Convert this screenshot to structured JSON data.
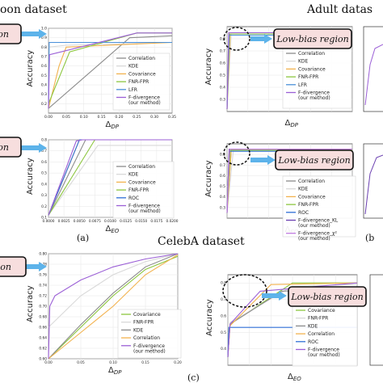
{
  "headings": {
    "top_left": "oon dataset",
    "top_right": "Adult datas",
    "middle": "CelebA dataset",
    "label_a": "(a)",
    "label_b": "(b",
    "label_c": "(c)"
  },
  "region_label": "Low-bias region",
  "region_label_partial": "region",
  "colors": {
    "correlation": "#8c8c8c",
    "kde": "#d9d9d9",
    "covariance": "#f2b24e",
    "fnr_fpr": "#8cc63f",
    "lfr": "#4a90d9",
    "roc": "#2e6fd6",
    "f_div": "#9b5fd6",
    "f_div_kl": "#6a3fb0",
    "f_div_chi": "#c07be0",
    "region_fill": "#f7dede",
    "arrow": "#5db3ea"
  },
  "icons": [
    "arrow-right-icon"
  ],
  "chart_data": [
    {
      "id": "orange-dp",
      "type": "line",
      "xlabel": "Δ_DP",
      "ylabel": "Accuracy",
      "xlim": [
        0,
        0.35
      ],
      "ylim": [
        0.1,
        1.0
      ],
      "xticks": [
        "0.00",
        "0.05",
        "0.10",
        "0.15",
        "0.20",
        "0.25",
        "0.30",
        "0.35"
      ],
      "yticks": [
        "0.2",
        "0.3",
        "0.4",
        "0.5",
        "0.6",
        "0.7",
        "0.8",
        "0.9",
        "1.0"
      ],
      "series": [
        {
          "name": "Correlation",
          "color_key": "correlation",
          "x": [
            0,
            0.23,
            0.35
          ],
          "y": [
            0.15,
            0.9,
            0.92
          ]
        },
        {
          "name": "KDE",
          "color_key": "kde",
          "x": [
            0,
            0.05,
            0.35
          ],
          "y": [
            0.8,
            0.82,
            0.85
          ]
        },
        {
          "name": "Covariance",
          "color_key": "covariance",
          "x": [
            0,
            0.03,
            0.05,
            0.35
          ],
          "y": [
            0.15,
            0.6,
            0.8,
            0.85
          ]
        },
        {
          "name": "FNR-FPR",
          "color_key": "fnr_fpr",
          "x": [
            0,
            0.06,
            0.25,
            0.35
          ],
          "y": [
            0.2,
            0.75,
            0.95,
            0.95
          ]
        },
        {
          "name": "LFR",
          "color_key": "lfr",
          "x": [
            0,
            0.002,
            0.35
          ],
          "y": [
            0.15,
            0.85,
            0.85
          ]
        },
        {
          "name": "F-divergence\n(our method)",
          "color_key": "f_div",
          "x": [
            0,
            0.003,
            0.09,
            0.25,
            0.35
          ],
          "y": [
            0.15,
            0.72,
            0.8,
            0.95,
            0.95
          ]
        }
      ]
    },
    {
      "id": "orange-eo",
      "type": "line",
      "xlabel": "Δ_EO",
      "ylabel": "Accuracy",
      "xlim": [
        0,
        0.02
      ],
      "ylim": [
        0.1,
        0.8
      ],
      "xticks": [
        "0.0000",
        "0.0025",
        "0.0050",
        "0.0075",
        "0.0100",
        "0.0125",
        "0.0150",
        "0.0175",
        "0.0200"
      ],
      "yticks": [
        "0.1",
        "0.2",
        "0.3",
        "0.4",
        "0.5",
        "0.6",
        "0.7",
        "0.8"
      ],
      "series": [
        {
          "name": "Correlation",
          "color_key": "correlation",
          "x": [
            0,
            0.006,
            0.02
          ],
          "y": [
            0.12,
            0.8,
            0.8
          ]
        },
        {
          "name": "KDE",
          "color_key": "kde",
          "x": [
            0,
            0.008,
            0.02
          ],
          "y": [
            0.12,
            0.75,
            0.75
          ]
        },
        {
          "name": "Covariance",
          "color_key": "covariance",
          "x": [
            0,
            0.005,
            0.02
          ],
          "y": [
            0.12,
            0.8,
            0.8
          ]
        },
        {
          "name": "FNR-FPR",
          "color_key": "fnr_fpr",
          "x": [
            0,
            0.0075,
            0.02
          ],
          "y": [
            0.12,
            0.8,
            0.8
          ]
        },
        {
          "name": "ROC",
          "color_key": "roc",
          "x": [
            0,
            0.005,
            0.02
          ],
          "y": [
            0.12,
            0.8,
            0.8
          ]
        },
        {
          "name": "F-divergence\n(our method)",
          "color_key": "f_div",
          "x": [
            0,
            0.0045,
            0.0055,
            0.02
          ],
          "y": [
            0.12,
            0.79,
            0.8,
            0.8
          ]
        }
      ]
    },
    {
      "id": "adult-dp",
      "type": "line",
      "xlabel": "Δ_DP",
      "ylabel": "Accuracy",
      "xlim": [
        0,
        0.6
      ],
      "ylim": [
        0.2,
        0.9
      ],
      "xticks": [
        "0.0",
        "0.1",
        "0.2",
        "0.3",
        "0.4",
        "0.5",
        "0.6"
      ],
      "yticks": [
        "0.3",
        "0.4",
        "0.5",
        "0.6",
        "0.7",
        "0.8"
      ],
      "series": [
        {
          "name": "Correlation",
          "color_key": "correlation",
          "x": [
            0,
            0.01,
            0.6
          ],
          "y": [
            0.22,
            0.84,
            0.84
          ]
        },
        {
          "name": "KDE",
          "color_key": "kde",
          "x": [
            0,
            0.02,
            0.6
          ],
          "y": [
            0.22,
            0.84,
            0.84
          ]
        },
        {
          "name": "Covariance",
          "color_key": "covariance",
          "x": [
            0,
            0.015,
            0.6
          ],
          "y": [
            0.22,
            0.84,
            0.84
          ]
        },
        {
          "name": "FNR-FPR",
          "color_key": "fnr_fpr",
          "x": [
            0,
            0.012,
            0.6
          ],
          "y": [
            0.22,
            0.84,
            0.84
          ]
        },
        {
          "name": "LFR",
          "color_key": "lfr",
          "x": [
            0,
            0.01,
            0.6
          ],
          "y": [
            0.22,
            0.83,
            0.83
          ]
        },
        {
          "name": "F-divergence\n(our method)",
          "color_key": "f_div",
          "x": [
            0,
            0.008,
            0.6
          ],
          "y": [
            0.22,
            0.85,
            0.85
          ]
        }
      ]
    },
    {
      "id": "adult-eo",
      "type": "line",
      "xlabel": "Δ_EO",
      "ylabel": "Accuracy",
      "xlim": [
        0,
        0.6
      ],
      "ylim": [
        0.2,
        0.9
      ],
      "xticks": [
        "0.0",
        "0.1",
        "0.2",
        "0.3",
        "0.4",
        "0.5",
        "0.6"
      ],
      "yticks": [
        "0.3",
        "0.4",
        "0.5",
        "0.6",
        "0.7",
        "0.8"
      ],
      "series": [
        {
          "name": "Correlation",
          "color_key": "correlation",
          "x": [
            0,
            0.02,
            0.6
          ],
          "y": [
            0.25,
            0.84,
            0.84
          ]
        },
        {
          "name": "KDE",
          "color_key": "kde",
          "x": [
            0,
            0.03,
            0.6
          ],
          "y": [
            0.25,
            0.84,
            0.84
          ]
        },
        {
          "name": "Covariance",
          "color_key": "covariance",
          "x": [
            0,
            0.02,
            0.6
          ],
          "y": [
            0.25,
            0.84,
            0.84
          ]
        },
        {
          "name": "FNR-FPR",
          "color_key": "fnr_fpr",
          "x": [
            0,
            0.015,
            0.6
          ],
          "y": [
            0.25,
            0.84,
            0.84
          ]
        },
        {
          "name": "ROC",
          "color_key": "roc",
          "x": [
            0,
            0.01,
            0.6
          ],
          "y": [
            0.25,
            0.83,
            0.83
          ]
        },
        {
          "name": "F-divergence_KL\n(our method)",
          "color_key": "f_div_kl",
          "x": [
            0,
            0.01,
            0.6
          ],
          "y": [
            0.25,
            0.85,
            0.85
          ]
        },
        {
          "name": "F-divergence_χ²\n(our method)",
          "color_key": "f_div_chi",
          "x": [
            0,
            0.012,
            0.6
          ],
          "y": [
            0.25,
            0.85,
            0.85
          ]
        }
      ]
    },
    {
      "id": "celeba-dp",
      "type": "line",
      "xlabel": "Δ_DP",
      "ylabel": "Accuracy",
      "xlim": [
        0,
        0.2
      ],
      "ylim": [
        0.6,
        0.8
      ],
      "xticks": [
        "0.00",
        "0.05",
        "0.10",
        "0.15",
        "0.20"
      ],
      "yticks": [
        "0.60",
        "0.62",
        "0.64",
        "0.66",
        "0.68",
        "0.70",
        "0.72",
        "0.74",
        "0.76",
        "0.78",
        "0.80"
      ],
      "series": [
        {
          "name": "Covariance",
          "color_key": "fnr_fpr",
          "x": [
            0,
            0.05,
            0.1,
            0.15,
            0.2
          ],
          "y": [
            0.6,
            0.66,
            0.72,
            0.77,
            0.795
          ]
        },
        {
          "name": "FNR-FPR",
          "color_key": "kde",
          "x": [
            0,
            0.05,
            0.1,
            0.15,
            0.2
          ],
          "y": [
            0.66,
            0.72,
            0.76,
            0.785,
            0.8
          ]
        },
        {
          "name": "KDE",
          "color_key": "correlation",
          "x": [
            0,
            0.05,
            0.1,
            0.15,
            0.2
          ],
          "y": [
            0.6,
            0.665,
            0.725,
            0.775,
            0.8
          ]
        },
        {
          "name": "Correlation",
          "color_key": "covariance",
          "x": [
            0,
            0.05,
            0.1,
            0.15,
            0.2
          ],
          "y": [
            0.6,
            0.65,
            0.7,
            0.76,
            0.798
          ]
        },
        {
          "name": "F-divergence\n(our method)",
          "color_key": "f_div",
          "x": [
            0,
            0.002,
            0.01,
            0.05,
            0.1,
            0.15,
            0.2
          ],
          "y": [
            0.6,
            0.7,
            0.72,
            0.75,
            0.775,
            0.79,
            0.8
          ]
        }
      ]
    },
    {
      "id": "celeba-eo",
      "type": "line",
      "xlabel": "Δ_EO",
      "ylabel": "Accuracy",
      "xlim": [
        0,
        0.6
      ],
      "ylim": [
        0.3,
        0.85
      ],
      "xticks": [
        "0.0",
        "0.1",
        "0.2",
        "0.3",
        "0.4",
        "0.5",
        "0.6"
      ],
      "yticks": [
        "0.4",
        "0.5",
        "0.6",
        "0.7",
        "0.8"
      ],
      "series": [
        {
          "name": "Covariance",
          "color_key": "fnr_fpr",
          "x": [
            0,
            0.01,
            0.3,
            0.6
          ],
          "y": [
            0.35,
            0.55,
            0.8,
            0.8
          ]
        },
        {
          "name": "FNR-FPR",
          "color_key": "kde",
          "x": [
            0,
            0.01,
            0.3,
            0.6
          ],
          "y": [
            0.35,
            0.56,
            0.78,
            0.79
          ]
        },
        {
          "name": "KDE",
          "color_key": "correlation",
          "x": [
            0,
            0.01,
            0.25,
            0.6
          ],
          "y": [
            0.35,
            0.55,
            0.75,
            0.77
          ]
        },
        {
          "name": "Correlation",
          "color_key": "covariance",
          "x": [
            0,
            0.01,
            0.2,
            0.6
          ],
          "y": [
            0.35,
            0.54,
            0.79,
            0.8
          ]
        },
        {
          "name": "ROC",
          "color_key": "roc",
          "x": [
            0,
            0.005,
            0.6
          ],
          "y": [
            0.35,
            0.53,
            0.53
          ]
        },
        {
          "name": "F-divergence\n(our method)",
          "color_key": "f_div",
          "x": [
            0,
            0.01,
            0.15,
            0.6
          ],
          "y": [
            0.35,
            0.55,
            0.75,
            0.8
          ]
        }
      ]
    }
  ]
}
